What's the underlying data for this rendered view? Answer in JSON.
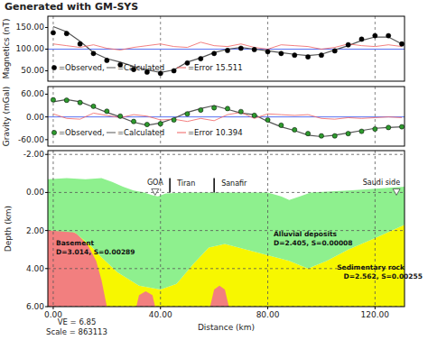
{
  "chart_data": [
    {
      "type": "line",
      "title": "Generated with GM-SYS",
      "y_label": "Magnetics (nT)",
      "x": [
        0,
        5,
        10,
        15,
        20,
        25,
        30,
        35,
        40,
        45,
        50,
        55,
        60,
        65,
        70,
        75,
        80,
        85,
        90,
        95,
        100,
        105,
        110,
        115,
        120,
        125,
        130
      ],
      "xlim": [
        -2,
        131
      ],
      "ylim": [
        26,
        176
      ],
      "xticks": [
        0,
        40,
        80,
        120
      ],
      "yticks": [
        {
          "value": 50,
          "label": "50.00"
        },
        {
          "value": 100,
          "label": "100.00"
        },
        {
          "value": 150,
          "label": "150.00"
        }
      ],
      "grid": "x",
      "tick_labels": "y",
      "reference_line": 100,
      "error_rms": 15.511,
      "series": [
        {
          "name": "=Observed,",
          "color": "#000000",
          "marker": "circle",
          "line_style": "none",
          "values": [
            138,
            136,
            112,
            90,
            74,
            64,
            53,
            47,
            44,
            50,
            68,
            78,
            90,
            97,
            102,
            99,
            94,
            90,
            86,
            82,
            86,
            96,
            110,
            123,
            131,
            131,
            112
          ]
        },
        {
          "name": "=Calculated",
          "color": "#555555",
          "marker": "none",
          "line_style": "solid",
          "values": [
            152,
            140,
            118,
            92,
            78,
            70,
            60,
            52,
            46,
            52,
            70,
            80,
            92,
            100,
            104,
            100,
            96,
            92,
            88,
            85,
            88,
            98,
            108,
            120,
            128,
            128,
            112
          ]
        },
        {
          "name": "=Error",
          "color": "#f06060",
          "marker": "none",
          "line_style": "solid",
          "values": [
            112,
            108,
            104,
            110,
            102,
            98,
            104,
            108,
            112,
            106,
            104,
            116,
            108,
            106,
            112,
            104,
            100,
            110,
            108,
            106,
            100,
            104,
            112,
            108,
            106,
            110,
            106
          ]
        }
      ]
    },
    {
      "type": "line",
      "y_label": "Gravity (mGal)",
      "x": [
        0,
        5,
        10,
        15,
        20,
        25,
        30,
        35,
        40,
        45,
        50,
        55,
        60,
        65,
        70,
        75,
        80,
        85,
        90,
        95,
        100,
        105,
        110,
        115,
        120,
        125,
        130
      ],
      "xlim": [
        -2,
        131
      ],
      "ylim": [
        -77,
        80
      ],
      "xticks": [
        0,
        40,
        80,
        120
      ],
      "yticks": [
        {
          "value": -60,
          "label": "-60.00"
        },
        {
          "value": 0,
          "label": "0.00"
        },
        {
          "value": 60,
          "label": "60.00"
        }
      ],
      "grid": "x",
      "tick_labels": "y",
      "reference_line": 0,
      "error_rms": 10.394,
      "series": [
        {
          "name": "=Observed,",
          "color": "#2e9b2e",
          "marker": "circle",
          "line_style": "none",
          "values": [
            45,
            44,
            38,
            28,
            15,
            2,
            -12,
            -20,
            -18,
            -8,
            8,
            18,
            24,
            22,
            14,
            4,
            -8,
            -22,
            -34,
            -44,
            -50,
            -50,
            -44,
            -38,
            -32,
            -28,
            -26
          ]
        },
        {
          "name": "=Calculated",
          "color": "#555555",
          "marker": "none",
          "line_style": "solid",
          "values": [
            40,
            46,
            40,
            26,
            12,
            0,
            -14,
            -22,
            -16,
            -4,
            12,
            22,
            30,
            20,
            10,
            6,
            -12,
            -26,
            -36,
            -48,
            -52,
            -48,
            -42,
            -36,
            -30,
            -28,
            -26
          ]
        },
        {
          "name": "=Error",
          "color": "#f06060",
          "marker": "none",
          "line_style": "solid",
          "values": [
            8,
            -4,
            -6,
            10,
            4,
            -2,
            6,
            2,
            -8,
            -6,
            -12,
            -4,
            -10,
            6,
            12,
            -4,
            8,
            6,
            4,
            6,
            -4,
            -6,
            -2,
            -4,
            -2,
            0,
            -2
          ]
        }
      ]
    },
    {
      "type": "section",
      "y_label": "Depth (km)",
      "x_label": "Distance (km)",
      "xlim": [
        -2,
        131
      ],
      "ylim": [
        -2.2,
        6
      ],
      "xticks": [
        {
          "value": 0,
          "label": "0.00"
        },
        {
          "value": 40,
          "label": "40.00"
        },
        {
          "value": 80,
          "label": "80.00"
        },
        {
          "value": 120,
          "label": "120.00"
        }
      ],
      "yticks": [
        {
          "value": -2,
          "label": "-2.00"
        },
        {
          "value": 0,
          "label": "0.00"
        },
        {
          "value": 2,
          "label": "2.00"
        },
        {
          "value": 4,
          "label": "4.00"
        },
        {
          "value": 6,
          "label": "6.00"
        }
      ],
      "grid": true,
      "annotations": [
        "VE = 6.85",
        "Scale = 863113"
      ],
      "stations": [
        {
          "label": "GOA",
          "x": 38,
          "depth": 0
        },
        {
          "label": "Saudi side",
          "x": 128,
          "depth": 0
        }
      ],
      "boundaries": [
        {
          "label": "Tiran",
          "x": 43.5,
          "depth": [
            -0.75,
            0
          ]
        },
        {
          "label": "Sanafir",
          "x": 60,
          "depth": [
            -0.75,
            0
          ]
        }
      ],
      "bodies": [
        {
          "name": "Sedimentary rock",
          "properties": "D=2.562, S=0.00255",
          "color": "#f7f700",
          "polygons": [
            {
              "x": [
                -2,
                8,
                14,
                18,
                24,
                32,
                40,
                46,
                52,
                58,
                64,
                72,
                80,
                88,
                95,
                102,
                110,
                120,
                131,
                131,
                -2
              ],
              "depth": [
                2.0,
                2.1,
                2.8,
                3.4,
                4.2,
                4.9,
                5.1,
                4.8,
                3.8,
                2.9,
                2.7,
                3.0,
                3.3,
                3.6,
                4.0,
                3.6,
                3.0,
                2.4,
                1.7,
                6,
                6
              ]
            }
          ]
        },
        {
          "name": "Basement",
          "properties": "D=3.014, S=0.00289",
          "color": "#f27f7f",
          "polygons": [
            {
              "x": [
                -2,
                5,
                9,
                13,
                16,
                18,
                20,
                -2
              ],
              "depth": [
                1.9,
                1.9,
                2.2,
                2.8,
                3.6,
                4.6,
                6,
                6
              ]
            },
            {
              "x": [
                31,
                32,
                34.5,
                37,
                38
              ],
              "depth": [
                6,
                5.4,
                5.2,
                5.4,
                6
              ]
            },
            {
              "x": [
                58.5,
                60,
                62,
                64,
                65.5
              ],
              "depth": [
                6,
                5.1,
                4.9,
                5.1,
                6
              ]
            }
          ]
        },
        {
          "name": "Alluvial deposits",
          "properties": "D=2.405, S=0.00008",
          "color": "#8ef08e",
          "polygons": [
            {
              "x": [
                -2,
                5,
                12,
                18,
                22,
                26,
                30,
                34,
                37,
                39,
                42,
                50,
                60,
                70,
                80,
                85,
                88,
                92,
                96,
                110,
                120,
                131,
                131,
                120,
                110,
                102,
                95,
                88,
                80,
                72,
                64,
                58,
                52,
                46,
                40,
                32,
                24,
                18,
                14,
                8,
                -2
              ],
              "depth": [
                -0.7,
                -0.75,
                -0.7,
                -0.75,
                -0.55,
                -0.3,
                -0.1,
                0,
                0.15,
                0.2,
                0.05,
                0,
                0,
                0,
                0,
                0.2,
                0.4,
                0.2,
                0,
                -0.1,
                -0.2,
                -0.3,
                1.7,
                2.4,
                3.0,
                3.6,
                4.0,
                3.6,
                3.3,
                3.0,
                2.7,
                2.9,
                3.8,
                4.8,
                5.1,
                4.9,
                4.2,
                3.4,
                2.8,
                2.1,
                2.0
              ]
            }
          ]
        }
      ]
    }
  ]
}
